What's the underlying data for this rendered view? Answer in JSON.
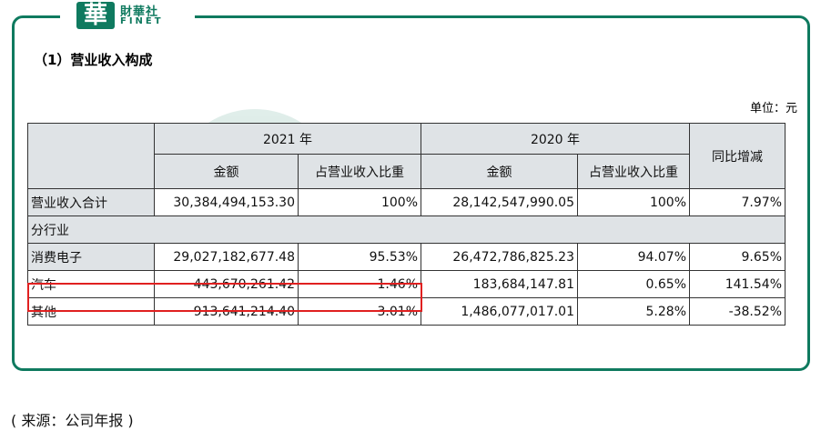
{
  "logo": {
    "glyph": "華",
    "name": "財華社",
    "sub": "FINET"
  },
  "section_title": "（1）营业收入构成",
  "unit": "单位：元",
  "table": {
    "year_2021": "2021 年",
    "year_2020": "2020 年",
    "yoy": "同比增减",
    "amount": "金额",
    "share": "占营业收入比重",
    "total": {
      "label": "营业收入合计",
      "amt2021": "30,384,494,153.30",
      "pct2021": "100%",
      "amt2020": "28,142,547,990.05",
      "pct2020": "100%",
      "yoy": "7.97%"
    },
    "segment_label": "分行业",
    "rows": [
      {
        "label": "消费电子",
        "amt2021": "29,027,182,677.48",
        "pct2021": "95.53%",
        "amt2020": "26,472,786,825.23",
        "pct2020": "94.07%",
        "yoy": "9.65%"
      },
      {
        "label": "汽车",
        "amt2021": "443,670,261.42",
        "pct2021": "1.46%",
        "amt2020": "183,684,147.81",
        "pct2020": "0.65%",
        "yoy": "141.54%"
      },
      {
        "label": "其他",
        "amt2021": "913,641,214.40",
        "pct2021": "3.01%",
        "amt2020": "1,486,077,017.01",
        "pct2020": "5.28%",
        "yoy": "-38.52%"
      }
    ]
  },
  "source": "( 来源：公司年报 )"
}
